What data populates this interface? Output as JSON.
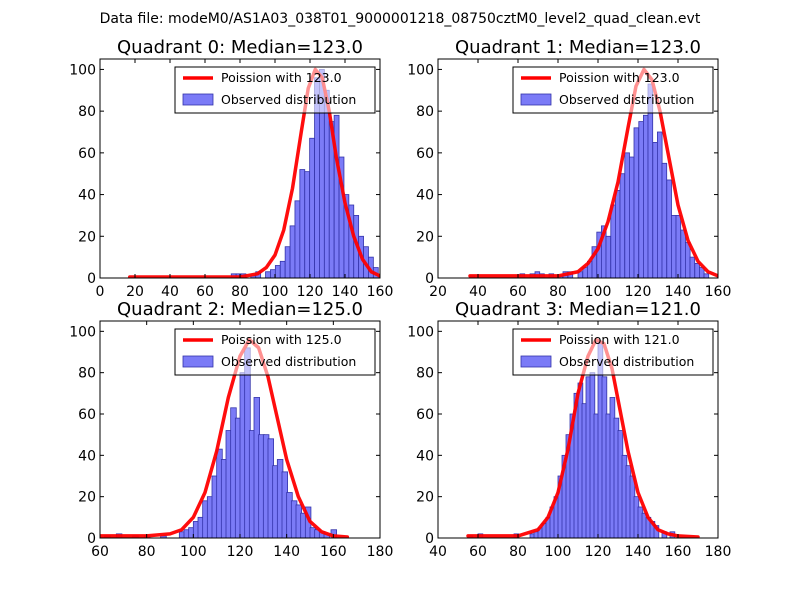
{
  "figure": {
    "suptitle": "Data file: modeM0/AS1A03_038T01_9000001218_08750cztM0_level2_quad_clean.evt"
  },
  "colors": {
    "hist_fill": "#7b7bf7",
    "hist_edge": "#3333aa",
    "poisson_line": "#ff0000",
    "axes": "#000000",
    "legend_edge": "#000000"
  },
  "chart_data": [
    {
      "type": "bar",
      "title": "Quadrant 0: Median=123.0",
      "median": 123.0,
      "xlim": [
        0,
        160
      ],
      "ylim": [
        0,
        105
      ],
      "xticks": [
        0,
        20,
        40,
        60,
        80,
        100,
        120,
        140,
        160
      ],
      "yticks": [
        0,
        20,
        40,
        60,
        80,
        100
      ],
      "legend": {
        "placement": "top-right",
        "line_label": "Poission with 123.0",
        "bar_label": "Observed distribution"
      },
      "bin_width": 2.8,
      "bins": [
        [
          75,
          2
        ],
        [
          77.8,
          2
        ],
        [
          80.6,
          2
        ],
        [
          86.2,
          1
        ],
        [
          89,
          3
        ],
        [
          94.6,
          3
        ],
        [
          97.4,
          4
        ],
        [
          100.2,
          6
        ],
        [
          103,
          8
        ],
        [
          105.8,
          15
        ],
        [
          108.6,
          25
        ],
        [
          111.4,
          37
        ],
        [
          114.2,
          52
        ],
        [
          117,
          51
        ],
        [
          119.8,
          67
        ],
        [
          122.6,
          96
        ],
        [
          125.4,
          100
        ],
        [
          128.2,
          90
        ],
        [
          131,
          75
        ],
        [
          133.8,
          78
        ],
        [
          136.6,
          58
        ],
        [
          139.4,
          40
        ],
        [
          142.2,
          35
        ],
        [
          145,
          30
        ],
        [
          147.8,
          20
        ],
        [
          150.6,
          15
        ],
        [
          153.4,
          10
        ],
        [
          156.2,
          5
        ]
      ],
      "poisson": [
        [
          17,
          0.5
        ],
        [
          40,
          0.5
        ],
        [
          60,
          0.5
        ],
        [
          80,
          0.5
        ],
        [
          90,
          2
        ],
        [
          95,
          5
        ],
        [
          100,
          11
        ],
        [
          105,
          23
        ],
        [
          110,
          43
        ],
        [
          115,
          70
        ],
        [
          119,
          91
        ],
        [
          123,
          100
        ],
        [
          127,
          96
        ],
        [
          131,
          80
        ],
        [
          135,
          58
        ],
        [
          140,
          36
        ],
        [
          145,
          20
        ],
        [
          150,
          9
        ],
        [
          155,
          3
        ],
        [
          160,
          1
        ]
      ]
    },
    {
      "type": "bar",
      "title": "Quadrant 1: Median=123.0",
      "median": 123.0,
      "xlim": [
        20,
        160
      ],
      "ylim": [
        0,
        105
      ],
      "xticks": [
        20,
        40,
        60,
        80,
        100,
        120,
        140,
        160
      ],
      "yticks": [
        0,
        20,
        40,
        60,
        80,
        100
      ],
      "legend": {
        "placement": "top-right",
        "line_label": "Poission with 123.0",
        "bar_label": "Observed distribution"
      },
      "bin_width": 2.35,
      "bins": [
        [
          36,
          1
        ],
        [
          61,
          2
        ],
        [
          66,
          2
        ],
        [
          68.5,
          3
        ],
        [
          70.8,
          2
        ],
        [
          75.5,
          2
        ],
        [
          80,
          1
        ],
        [
          82.5,
          3
        ],
        [
          85,
          3
        ],
        [
          90,
          3
        ],
        [
          92.4,
          5
        ],
        [
          94.7,
          8
        ],
        [
          97,
          15
        ],
        [
          99.4,
          22
        ],
        [
          101.7,
          25
        ],
        [
          104,
          20
        ],
        [
          106.4,
          35
        ],
        [
          108.7,
          42
        ],
        [
          111,
          50
        ],
        [
          113.4,
          60
        ],
        [
          115.7,
          58
        ],
        [
          118,
          72
        ],
        [
          120.4,
          75
        ],
        [
          122.7,
          78
        ],
        [
          125,
          93
        ],
        [
          127.4,
          65
        ],
        [
          129.7,
          70
        ],
        [
          132,
          55
        ],
        [
          134.4,
          47
        ],
        [
          136.7,
          30
        ],
        [
          139,
          30
        ],
        [
          141.4,
          23
        ],
        [
          143.7,
          17
        ],
        [
          146,
          10
        ],
        [
          148.4,
          7
        ],
        [
          150.7,
          5
        ],
        [
          153,
          2
        ]
      ],
      "poisson": [
        [
          36,
          1
        ],
        [
          60,
          1
        ],
        [
          80,
          1
        ],
        [
          90,
          3
        ],
        [
          95,
          7
        ],
        [
          100,
          14
        ],
        [
          105,
          27
        ],
        [
          110,
          46
        ],
        [
          115,
          72
        ],
        [
          119,
          92
        ],
        [
          123,
          100
        ],
        [
          127,
          95
        ],
        [
          131,
          80
        ],
        [
          135,
          60
        ],
        [
          140,
          35
        ],
        [
          145,
          18
        ],
        [
          150,
          8
        ],
        [
          155,
          3
        ],
        [
          160,
          1
        ]
      ]
    },
    {
      "type": "bar",
      "title": "Quadrant 2: Median=125.0",
      "median": 125.0,
      "xlim": [
        60,
        180
      ],
      "ylim": [
        0,
        105
      ],
      "xticks": [
        60,
        80,
        100,
        120,
        140,
        160,
        180
      ],
      "yticks": [
        0,
        20,
        40,
        60,
        80,
        100
      ],
      "legend": {
        "placement": "top-right",
        "line_label": "Poission with 125.0",
        "bar_label": "Observed distribution"
      },
      "bin_width": 2.4,
      "bins": [
        [
          62,
          1
        ],
        [
          67,
          2
        ],
        [
          74,
          1
        ],
        [
          79,
          1
        ],
        [
          86,
          1
        ],
        [
          94,
          3
        ],
        [
          96,
          4
        ],
        [
          98,
          5
        ],
        [
          100,
          8
        ],
        [
          102,
          10
        ],
        [
          104,
          18
        ],
        [
          106,
          20
        ],
        [
          108,
          30
        ],
        [
          110,
          43
        ],
        [
          112,
          38
        ],
        [
          114,
          52
        ],
        [
          116,
          63
        ],
        [
          118,
          58
        ],
        [
          120,
          80
        ],
        [
          122,
          92
        ],
        [
          124,
          52
        ],
        [
          126,
          68
        ],
        [
          128,
          50
        ],
        [
          130,
          50
        ],
        [
          132,
          48
        ],
        [
          134,
          35
        ],
        [
          136,
          38
        ],
        [
          138,
          32
        ],
        [
          140,
          22
        ],
        [
          142,
          18
        ],
        [
          144,
          16
        ],
        [
          146,
          12
        ],
        [
          148,
          15
        ],
        [
          150,
          5
        ],
        [
          152,
          4
        ],
        [
          154,
          3
        ],
        [
          156,
          2
        ],
        [
          159,
          4
        ]
      ],
      "poisson": [
        [
          60,
          1
        ],
        [
          80,
          1
        ],
        [
          90,
          2
        ],
        [
          95,
          4
        ],
        [
          100,
          10
        ],
        [
          105,
          22
        ],
        [
          110,
          42
        ],
        [
          115,
          68
        ],
        [
          120,
          88
        ],
        [
          124,
          96
        ],
        [
          128,
          92
        ],
        [
          132,
          78
        ],
        [
          136,
          58
        ],
        [
          140,
          38
        ],
        [
          145,
          20
        ],
        [
          150,
          8
        ],
        [
          155,
          3
        ],
        [
          160,
          1
        ],
        [
          166,
          0.5
        ]
      ]
    },
    {
      "type": "bar",
      "title": "Quadrant 3: Median=121.0",
      "median": 121.0,
      "xlim": [
        40,
        180
      ],
      "ylim": [
        0,
        105
      ],
      "xticks": [
        40,
        60,
        80,
        100,
        120,
        140,
        160,
        180
      ],
      "yticks": [
        0,
        20,
        40,
        60,
        80,
        100
      ],
      "legend": {
        "placement": "top-right",
        "line_label": "Poission with 121.0",
        "bar_label": "Observed distribution"
      },
      "bin_width": 2.4,
      "bins": [
        [
          55,
          1
        ],
        [
          60,
          2
        ],
        [
          78,
          2
        ],
        [
          86,
          2
        ],
        [
          88,
          3
        ],
        [
          90,
          5
        ],
        [
          92,
          7
        ],
        [
          94,
          10
        ],
        [
          96,
          15
        ],
        [
          98,
          20
        ],
        [
          100,
          30
        ],
        [
          102,
          40
        ],
        [
          104,
          50
        ],
        [
          106,
          60
        ],
        [
          108,
          70
        ],
        [
          110,
          75
        ],
        [
          112,
          65
        ],
        [
          114,
          78
        ],
        [
          116,
          80
        ],
        [
          118,
          60
        ],
        [
          120,
          95
        ],
        [
          122,
          78
        ],
        [
          124,
          60
        ],
        [
          126,
          68
        ],
        [
          128,
          58
        ],
        [
          130,
          52
        ],
        [
          132,
          40
        ],
        [
          134,
          35
        ],
        [
          136,
          30
        ],
        [
          138,
          20
        ],
        [
          140,
          15
        ],
        [
          142,
          12
        ],
        [
          144,
          10
        ],
        [
          146,
          8
        ],
        [
          148,
          6
        ],
        [
          152,
          3
        ],
        [
          156,
          3
        ]
      ],
      "poisson": [
        [
          55,
          1
        ],
        [
          70,
          1
        ],
        [
          80,
          1
        ],
        [
          90,
          4
        ],
        [
          95,
          10
        ],
        [
          100,
          22
        ],
        [
          105,
          43
        ],
        [
          110,
          70
        ],
        [
          115,
          88
        ],
        [
          119,
          96
        ],
        [
          123,
          94
        ],
        [
          127,
          82
        ],
        [
          131,
          62
        ],
        [
          135,
          42
        ],
        [
          140,
          22
        ],
        [
          145,
          10
        ],
        [
          150,
          4
        ],
        [
          155,
          2
        ],
        [
          160,
          1
        ],
        [
          170,
          0.5
        ]
      ]
    }
  ]
}
